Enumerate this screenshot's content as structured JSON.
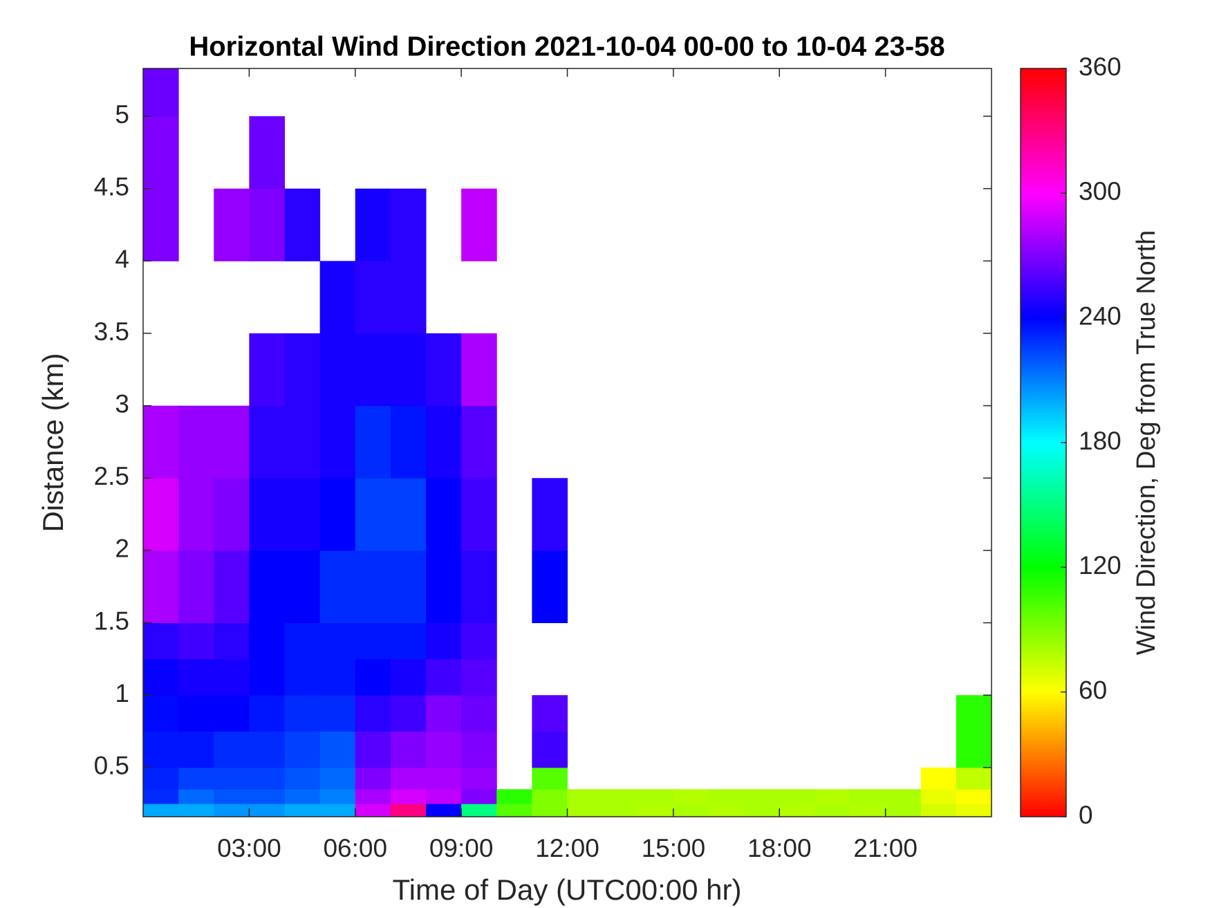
{
  "chart_data": {
    "type": "heatmap",
    "title": "Horizontal Wind Direction 2021-10-04 00-00 to 10-04 23-58",
    "x_label": "Time of Day (UTC00:00 hr)",
    "y_label": "Distance (km)",
    "colorbar_label": "Wind Direction, Deg from True North",
    "x_edges": [
      0,
      1,
      2,
      3,
      4,
      5,
      6,
      7,
      8,
      9,
      10,
      11,
      12,
      13,
      14,
      15,
      16,
      17,
      18,
      19,
      20,
      21,
      22,
      23,
      24
    ],
    "y_edges": [
      0.16,
      0.25,
      0.35,
      0.5,
      0.75,
      1,
      1.25,
      1.5,
      2,
      2.5,
      3,
      3.5,
      4,
      4.5,
      5,
      5.33
    ],
    "z": [
      [
        200,
        230,
        232,
        235,
        238,
        242,
        250,
        280,
        290,
        280,
        null,
        null,
        270,
        270,
        265
      ],
      [
        200,
        215,
        225,
        235,
        240,
        245,
        255,
        270,
        275,
        275,
        null,
        null,
        null,
        null,
        null
      ],
      [
        205,
        220,
        225,
        230,
        240,
        245,
        250,
        260,
        270,
        275,
        null,
        null,
        275,
        null,
        null
      ],
      [
        205,
        220,
        225,
        230,
        235,
        240,
        240,
        240,
        245,
        250,
        255,
        null,
        270,
        265,
        null
      ],
      [
        200,
        215,
        220,
        225,
        230,
        235,
        235,
        240,
        245,
        250,
        250,
        null,
        250,
        null,
        null
      ],
      [
        200,
        210,
        215,
        220,
        230,
        235,
        235,
        230,
        240,
        245,
        245,
        245,
        null,
        null,
        null
      ],
      [
        290,
        280,
        270,
        260,
        250,
        240,
        235,
        230,
        225,
        230,
        245,
        250,
        245,
        null,
        null
      ],
      [
        330,
        290,
        280,
        270,
        255,
        245,
        235,
        230,
        225,
        235,
        245,
        250,
        250,
        null,
        null
      ],
      [
        240,
        285,
        280,
        275,
        270,
        255,
        245,
        240,
        240,
        245,
        250,
        null,
        null,
        null,
        null
      ],
      [
        150,
        270,
        275,
        270,
        265,
        260,
        255,
        250,
        255,
        260,
        280,
        null,
        285,
        null,
        null
      ],
      [
        100,
        110,
        null,
        null,
        null,
        null,
        null,
        null,
        null,
        null,
        null,
        null,
        null,
        null,
        null
      ],
      [
        90,
        90,
        100,
        255,
        260,
        null,
        null,
        240,
        250,
        null,
        null,
        null,
        null,
        null,
        null
      ],
      [
        80,
        80,
        null,
        null,
        null,
        null,
        null,
        null,
        null,
        null,
        null,
        null,
        null,
        null,
        null
      ],
      [
        80,
        80,
        null,
        null,
        null,
        null,
        null,
        null,
        null,
        null,
        null,
        null,
        null,
        null,
        null
      ],
      [
        78,
        80,
        null,
        null,
        null,
        null,
        null,
        null,
        null,
        null,
        null,
        null,
        null,
        null,
        null
      ],
      [
        80,
        78,
        null,
        null,
        null,
        null,
        null,
        null,
        null,
        null,
        null,
        null,
        null,
        null,
        null
      ],
      [
        78,
        80,
        null,
        null,
        null,
        null,
        null,
        null,
        null,
        null,
        null,
        null,
        null,
        null,
        null
      ],
      [
        80,
        80,
        null,
        null,
        null,
        null,
        null,
        null,
        null,
        null,
        null,
        null,
        null,
        null,
        null
      ],
      [
        78,
        80,
        null,
        null,
        null,
        null,
        null,
        null,
        null,
        null,
        null,
        null,
        null,
        null,
        null
      ],
      [
        80,
        78,
        null,
        null,
        null,
        null,
        null,
        null,
        null,
        null,
        null,
        null,
        null,
        null,
        null
      ],
      [
        78,
        80,
        null,
        null,
        null,
        null,
        null,
        null,
        null,
        null,
        null,
        null,
        null,
        null,
        null
      ],
      [
        80,
        80,
        null,
        null,
        null,
        null,
        null,
        null,
        null,
        null,
        null,
        null,
        null,
        null,
        null
      ],
      [
        70,
        65,
        60,
        null,
        null,
        null,
        null,
        null,
        null,
        null,
        null,
        null,
        null,
        null,
        null
      ],
      [
        65,
        60,
        75,
        110,
        110,
        null,
        null,
        null,
        null,
        null,
        null,
        null,
        null,
        null,
        null
      ]
    ],
    "xlim": [
      0,
      24
    ],
    "ylim": [
      0.16,
      5.33
    ],
    "xticks": [
      {
        "value": 3,
        "label": "03:00"
      },
      {
        "value": 6,
        "label": "06:00"
      },
      {
        "value": 9,
        "label": "09:00"
      },
      {
        "value": 12,
        "label": "12:00"
      },
      {
        "value": 15,
        "label": "15:00"
      },
      {
        "value": 18,
        "label": "18:00"
      },
      {
        "value": 21,
        "label": "21:00"
      }
    ],
    "yticks": [
      0.5,
      1,
      1.5,
      2,
      2.5,
      3,
      3.5,
      4,
      4.5,
      5
    ],
    "clim": [
      0,
      360
    ],
    "cticks": [
      0,
      60,
      120,
      180,
      240,
      300,
      360
    ],
    "colormap": [
      "#ff0000",
      "#ffff00",
      "#00ff00",
      "#00ffff",
      "#0000ff",
      "#ff00ff",
      "#ff0000"
    ]
  }
}
